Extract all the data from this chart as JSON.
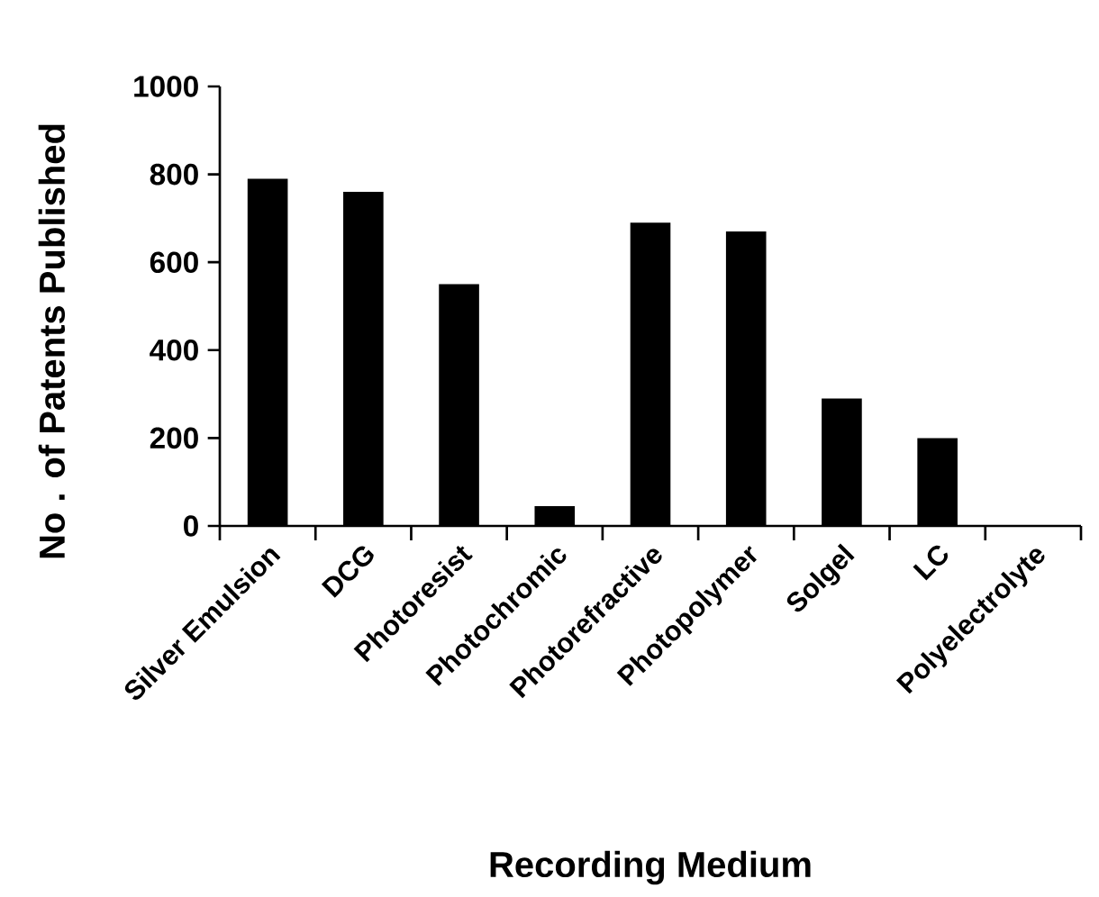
{
  "chart_data": {
    "type": "bar",
    "xlabel": "Recording Medium",
    "ylabel": "No . of Patents Published",
    "categories": [
      "Silver Emulsion",
      "DCG",
      "Photoresist",
      "Photochromic",
      "Photorefractive",
      "Photopolymer",
      "Solgel",
      "LC",
      "Polyelectrolyte"
    ],
    "values": [
      790,
      760,
      550,
      45,
      690,
      670,
      290,
      200,
      0
    ],
    "color": "#000000",
    "ylim": [
      0,
      1000
    ],
    "yticks": [
      0,
      200,
      400,
      600,
      800,
      1000
    ]
  }
}
